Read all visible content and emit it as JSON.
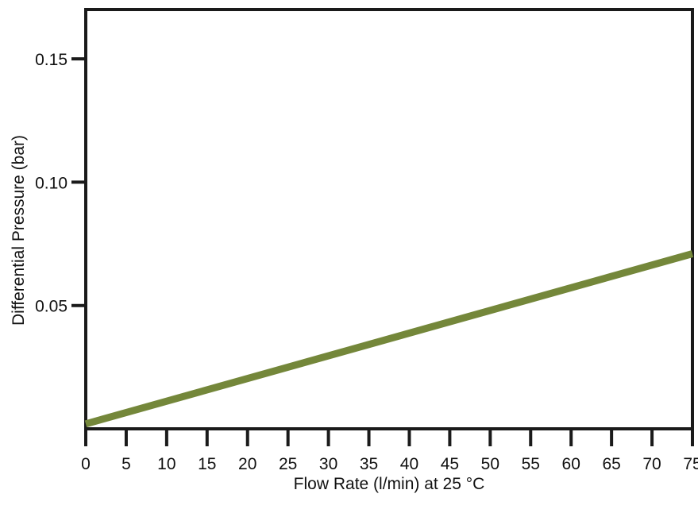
{
  "chart_data": {
    "type": "line",
    "xlabel": "Flow Rate (l/min) at 25 °C",
    "ylabel": "Differential Pressure (bar)",
    "xlim": [
      0,
      75
    ],
    "ylim": [
      0,
      0.17
    ],
    "x_ticks": [
      0,
      5,
      10,
      15,
      20,
      25,
      30,
      35,
      40,
      45,
      50,
      55,
      60,
      65,
      70,
      75
    ],
    "x_tick_labels": [
      "0",
      "5",
      "10",
      "15",
      "20",
      "25",
      "30",
      "35",
      "40",
      "45",
      "50",
      "55",
      "60",
      "65",
      "70",
      "75"
    ],
    "y_ticks": [
      0.05,
      0.1,
      0.15
    ],
    "y_tick_labels": [
      "0.05",
      "0.10",
      "0.15"
    ],
    "grid": false,
    "series": [
      {
        "color": "#74873a",
        "x": [
          0,
          75
        ],
        "y": [
          0.002,
          0.071
        ]
      }
    ]
  }
}
